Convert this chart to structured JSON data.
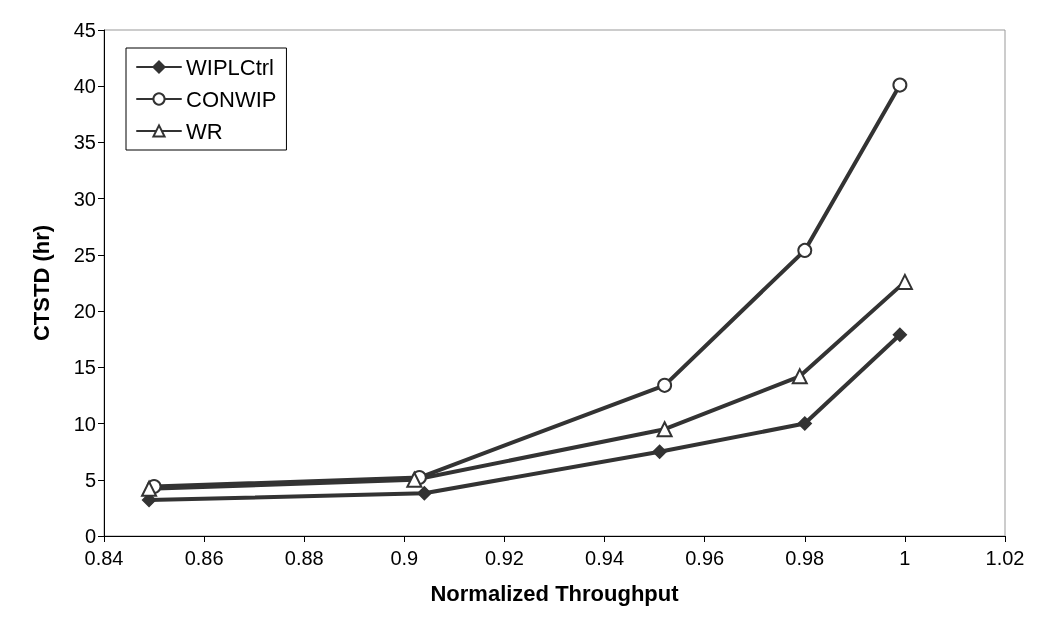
{
  "chart_data": {
    "type": "line",
    "xlabel": "Normalized Throughput",
    "ylabel": "CTSTD (hr)",
    "xlim": [
      0.84,
      1.02
    ],
    "xticks": [
      0.84,
      0.86,
      0.88,
      0.9,
      0.92,
      0.94,
      0.96,
      0.98,
      1,
      1.02
    ],
    "ylim": [
      0,
      45
    ],
    "yticks": [
      0,
      5,
      10,
      15,
      20,
      25,
      30,
      35,
      40,
      45
    ],
    "grid": false,
    "legend": "top left",
    "line_style": "solid",
    "series": [
      {
        "name": "WIPLCtrl",
        "color": "#333333",
        "marker": "diamond",
        "x": [
          0.849,
          0.904,
          0.951,
          0.98,
          0.999
        ],
        "values": [
          3.2,
          3.8,
          7.5,
          10.0,
          17.9
        ]
      },
      {
        "name": "CONWIP",
        "color": "#333333",
        "marker": "circle",
        "x": [
          0.85,
          0.903,
          0.952,
          0.98,
          0.999
        ],
        "values": [
          4.4,
          5.2,
          13.4,
          25.4,
          40.1
        ]
      },
      {
        "name": "WR",
        "color": "#333333",
        "marker": "triangle",
        "x": [
          0.849,
          0.902,
          0.952,
          0.979,
          1.0
        ],
        "values": [
          4.2,
          5.0,
          9.5,
          14.2,
          22.6
        ]
      }
    ]
  }
}
